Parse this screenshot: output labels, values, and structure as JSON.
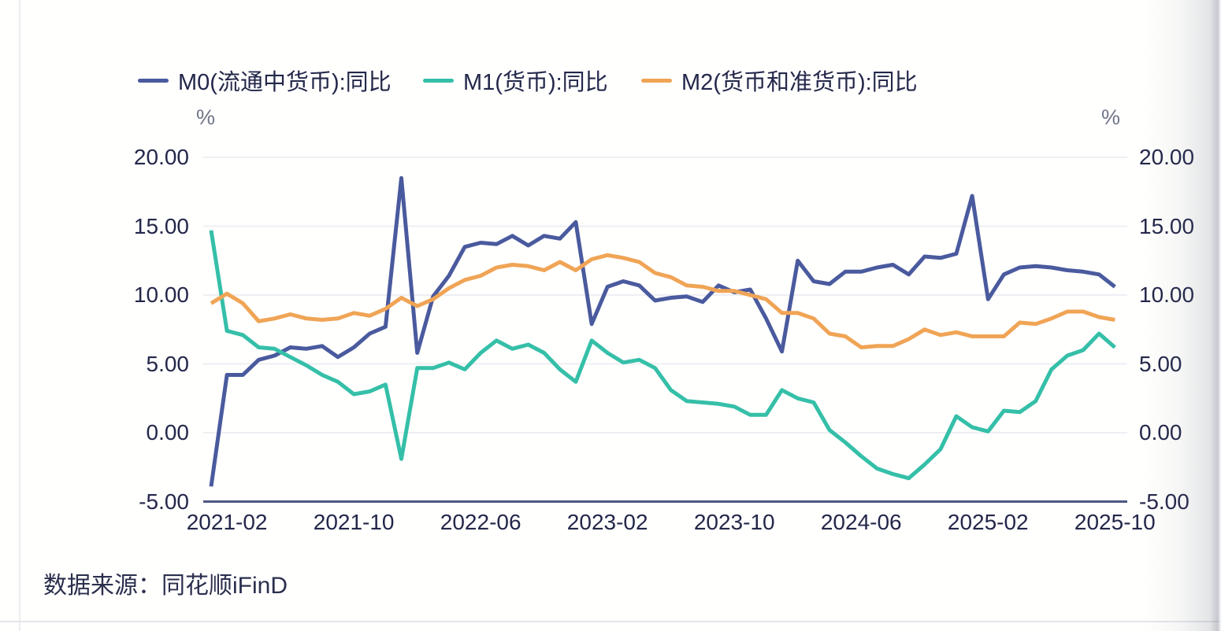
{
  "footer": {
    "source": "数据来源：同花顺iFinD"
  },
  "chart_data": {
    "type": "line",
    "title": "",
    "xlabel": "",
    "ylabel": "%",
    "y_axis_unit": "%",
    "legend_position": "top",
    "grid": true,
    "ylim": [
      -5,
      20
    ],
    "yticks": [
      {
        "label": "20.00",
        "value": 20
      },
      {
        "label": "15.00",
        "value": 15
      },
      {
        "label": "10.00",
        "value": 10
      },
      {
        "label": "5.00",
        "value": 5
      },
      {
        "label": "0.00",
        "value": 0
      },
      {
        "label": "-5.00",
        "value": -5
      }
    ],
    "xticks": [
      {
        "label": "2021-02",
        "index": 1
      },
      {
        "label": "2021-10",
        "index": 9
      },
      {
        "label": "2022-06",
        "index": 17
      },
      {
        "label": "2023-02",
        "index": 25
      },
      {
        "label": "2023-10",
        "index": 33
      },
      {
        "label": "2024-06",
        "index": 41
      },
      {
        "label": "2025-02",
        "index": 49
      },
      {
        "label": "2025-10",
        "index": 57
      }
    ],
    "style": {
      "grid_color": "#e8eaf0",
      "axis_line_color": "#4e5880",
      "tick_text_color": "#23274a",
      "unit_text_color": "#6f7489",
      "line_width": 5
    },
    "x": [
      "2021-01",
      "2021-02",
      "2021-03",
      "2021-04",
      "2021-05",
      "2021-06",
      "2021-07",
      "2021-08",
      "2021-09",
      "2021-10",
      "2021-11",
      "2021-12",
      "2022-01",
      "2022-02",
      "2022-03",
      "2022-04",
      "2022-05",
      "2022-06",
      "2022-07",
      "2022-08",
      "2022-09",
      "2022-10",
      "2022-11",
      "2022-12",
      "2023-01",
      "2023-02",
      "2023-03",
      "2023-04",
      "2023-05",
      "2023-06",
      "2023-07",
      "2023-08",
      "2023-09",
      "2023-10",
      "2023-11",
      "2023-12",
      "2024-01",
      "2024-02",
      "2024-03",
      "2024-04",
      "2024-05",
      "2024-06",
      "2024-07",
      "2024-08",
      "2024-09",
      "2024-10",
      "2024-11",
      "2024-12",
      "2025-01",
      "2025-02",
      "2025-03",
      "2025-04",
      "2025-05",
      "2025-06",
      "2025-07",
      "2025-08",
      "2025-09",
      "2025-10"
    ],
    "series": [
      {
        "name": "M0(流通中货币):同比",
        "color": "#4a5a9e",
        "values": [
          -3.9,
          4.2,
          4.2,
          5.3,
          5.6,
          6.2,
          6.1,
          6.3,
          5.5,
          6.2,
          7.2,
          7.7,
          18.5,
          5.8,
          9.9,
          11.4,
          13.5,
          13.8,
          13.7,
          14.3,
          13.6,
          14.3,
          14.1,
          15.3,
          7.9,
          10.6,
          11.0,
          10.7,
          9.6,
          9.8,
          9.9,
          9.5,
          10.7,
          10.2,
          10.4,
          8.3,
          5.9,
          12.5,
          11.0,
          10.8,
          11.7,
          11.7,
          12.0,
          12.2,
          11.5,
          12.8,
          12.7,
          13.0,
          17.2,
          9.7,
          11.5,
          12.0,
          12.1,
          12.0,
          11.8,
          11.7,
          11.5,
          10.6
        ]
      },
      {
        "name": "M1(货币):同比",
        "color": "#35bfa8",
        "values": [
          14.7,
          7.4,
          7.1,
          6.2,
          6.1,
          5.5,
          4.9,
          4.2,
          3.7,
          2.8,
          3.0,
          3.5,
          -1.9,
          4.7,
          4.7,
          5.1,
          4.6,
          5.8,
          6.7,
          6.1,
          6.4,
          5.8,
          4.6,
          3.7,
          6.7,
          5.8,
          5.1,
          5.3,
          4.7,
          3.1,
          2.3,
          2.2,
          2.1,
          1.9,
          1.3,
          1.3,
          3.1,
          2.5,
          2.2,
          0.2,
          -0.7,
          -1.7,
          -2.6,
          -3.0,
          -3.3,
          -2.3,
          -1.2,
          1.2,
          0.4,
          0.1,
          1.6,
          1.5,
          2.3,
          4.6,
          5.6,
          6.0,
          7.2,
          6.2
        ]
      },
      {
        "name": "M2(货币和准货币):同比",
        "color": "#f0a455",
        "values": [
          9.4,
          10.1,
          9.4,
          8.1,
          8.3,
          8.6,
          8.3,
          8.2,
          8.3,
          8.7,
          8.5,
          9.0,
          9.8,
          9.2,
          9.7,
          10.5,
          11.1,
          11.4,
          12.0,
          12.2,
          12.1,
          11.8,
          12.4,
          11.8,
          12.6,
          12.9,
          12.7,
          12.4,
          11.6,
          11.3,
          10.7,
          10.6,
          10.3,
          10.3,
          10.0,
          9.7,
          8.7,
          8.7,
          8.3,
          7.2,
          7.0,
          6.2,
          6.3,
          6.3,
          6.8,
          7.5,
          7.1,
          7.3,
          7.0,
          7.0,
          7.0,
          8.0,
          7.9,
          8.3,
          8.8,
          8.8,
          8.4,
          8.2
        ]
      }
    ]
  }
}
